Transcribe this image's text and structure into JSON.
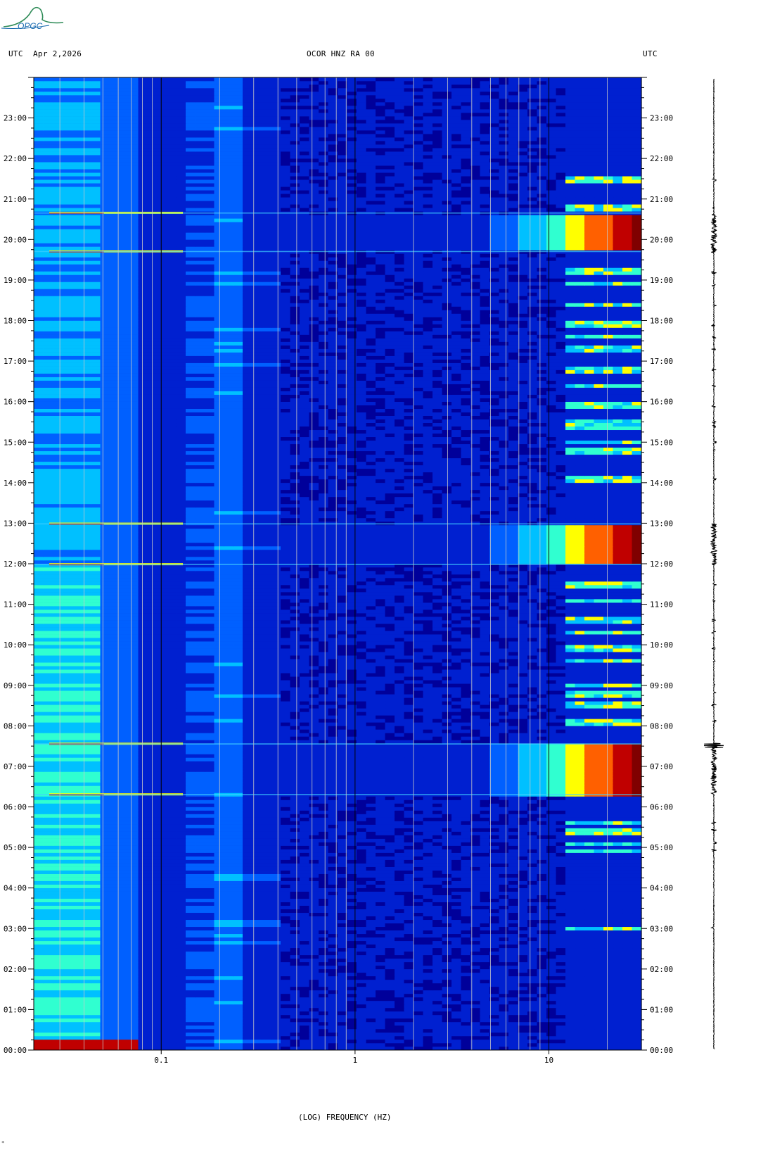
{
  "header": {
    "left_tz": "UTC",
    "date": "Apr 2,2026",
    "station": "OCOR HNZ RA 00",
    "right_tz": "UTC"
  },
  "logo": {
    "text": "OPGC",
    "color": "#2e8b57"
  },
  "chart_data": {
    "type": "heatmap",
    "title": "OCOR HNZ RA 00",
    "xlabel": "(LOG) FREQUENCY (HZ)",
    "x_scale": "log",
    "xlim": [
      0.022,
      30
    ],
    "x_ticks": [
      {
        "value": 0.1,
        "label": "0.1"
      },
      {
        "value": 1,
        "label": "1"
      },
      {
        "value": 10,
        "label": "10"
      }
    ],
    "x_gridlines": [
      0.03,
      0.04,
      0.05,
      0.06,
      0.07,
      0.08,
      0.09,
      0.1,
      0.2,
      0.3,
      0.4,
      0.5,
      0.6,
      0.7,
      0.8,
      0.9,
      1,
      2,
      3,
      4,
      5,
      6,
      7,
      8,
      9,
      10,
      20
    ],
    "ylabel": "UTC",
    "ylim_hours": [
      0,
      24
    ],
    "y_tick_labels": [
      "00:00",
      "01:00",
      "02:00",
      "03:00",
      "04:00",
      "05:00",
      "06:00",
      "07:00",
      "08:00",
      "09:00",
      "10:00",
      "11:00",
      "12:00",
      "13:00",
      "14:00",
      "15:00",
      "16:00",
      "17:00",
      "18:00",
      "19:00",
      "20:00",
      "21:00",
      "22:00",
      "23:00"
    ],
    "colormap": [
      "#00009a",
      "#0020d0",
      "#0060ff",
      "#00c0ff",
      "#30ffd0",
      "#ffff00",
      "#ff6000",
      "#c00000",
      "#800000"
    ],
    "high_energy_windows_hours": [
      {
        "start": 6.3,
        "end": 7.55
      },
      {
        "start": 11.98,
        "end": 12.98
      },
      {
        "start": 19.7,
        "end": 20.65
      }
    ],
    "events_hours": [
      3.0,
      4.9,
      5.1,
      5.4,
      5.6,
      8.1,
      8.5,
      8.8,
      9.0,
      9.6,
      9.9,
      10.3,
      10.6,
      11.1,
      11.5,
      14.1,
      14.8,
      15.0,
      15.4,
      15.5,
      15.9,
      16.4,
      16.8,
      17.3,
      17.6,
      17.9,
      18.4,
      18.9,
      19.2,
      20.8,
      21.5
    ]
  },
  "trace_panel": {
    "label": "seismogram trace"
  },
  "corner_mark": "*"
}
